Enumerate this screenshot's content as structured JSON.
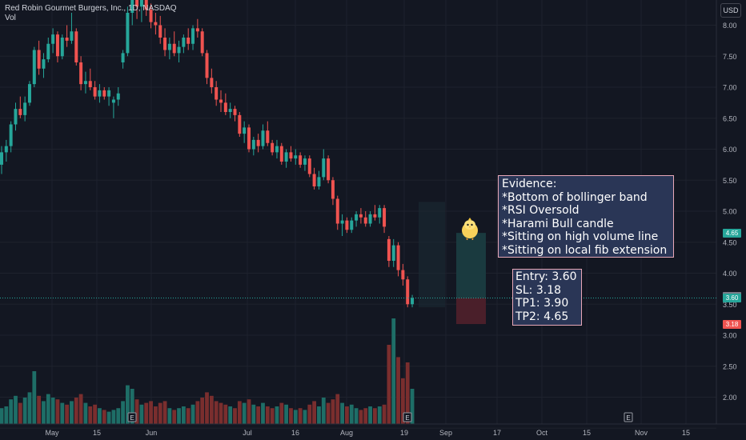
{
  "header": {
    "symbol_line": "Red Robin Gourmet Burgers, Inc., 1D, NASDAQ",
    "volume_label": "Vol"
  },
  "currency_button": "USD",
  "colors": {
    "background": "#131722",
    "up": "#26a69a",
    "down": "#ef5350",
    "vol_up": "#1e6e67",
    "vol_down": "#7a2e2e",
    "target_zone": "#1a3a3f",
    "stop_zone": "#4a1f2a",
    "note_fill": "#2a3656",
    "note_border": "#e8a8b8"
  },
  "notes": {
    "evidence": [
      "Evidence:",
      "*Bottom of bollinger band",
      "*RSI Oversold",
      "*Harami Bull candle",
      "*Sitting on high volume line",
      "*Sitting on local fib extension"
    ],
    "trade": [
      "Entry: 3.60",
      "SL: 3.18",
      "TP1: 3.90",
      "TP2: 4.65"
    ]
  },
  "price_tags": [
    {
      "label": "4.65",
      "value": 4.65,
      "color": "#26a69a"
    },
    {
      "label": "3.60",
      "value": 3.62,
      "color": "#787b86"
    },
    {
      "label": "3.60",
      "value": 3.6,
      "color": "#26a69a"
    },
    {
      "label": "3.18",
      "value": 3.18,
      "color": "#ef5350"
    }
  ],
  "trade_levels": {
    "entry": 3.6,
    "stop": 3.18,
    "tp1": 3.9,
    "tp2": 4.65
  },
  "chart_data": {
    "type": "candlestick",
    "y_ticks": [
      1.5,
      2.0,
      2.5,
      3.0,
      3.5,
      4.0,
      4.5,
      5.0,
      5.5,
      6.0,
      6.5,
      7.0,
      7.5,
      8.0
    ],
    "y_tick_labels": [
      "",
      "2.00",
      "2.50",
      "3.00",
      "3.50",
      "4.00",
      "4.50",
      "5.00",
      "5.50",
      "6.00",
      "6.50",
      "7.00",
      "7.50",
      "8.00"
    ],
    "ylim": [
      1.75,
      8.45
    ],
    "x_tick_labels": [
      "May",
      "15",
      "Jun",
      "Jul",
      "16",
      "Aug",
      "19",
      "Sep",
      "17",
      "Oct",
      "15",
      "Nov",
      "15"
    ],
    "x_tick_days": [
      0,
      14,
      31,
      61,
      76,
      92,
      110,
      123,
      139,
      153,
      167,
      184,
      198
    ],
    "event_markers": [
      "E",
      "E",
      "E"
    ],
    "event_days": [
      25,
      111,
      180
    ],
    "bars": [
      {
        "o": 5.75,
        "h": 6.05,
        "l": 5.6,
        "c": 5.95,
        "v": 0.09
      },
      {
        "o": 5.95,
        "h": 6.15,
        "l": 5.8,
        "c": 6.05,
        "v": 0.1
      },
      {
        "o": 6.05,
        "h": 6.45,
        "l": 5.95,
        "c": 6.4,
        "v": 0.14
      },
      {
        "o": 6.4,
        "h": 6.75,
        "l": 6.3,
        "c": 6.65,
        "v": 0.16
      },
      {
        "o": 6.65,
        "h": 6.85,
        "l": 6.5,
        "c": 6.55,
        "v": 0.12
      },
      {
        "o": 6.55,
        "h": 6.85,
        "l": 6.45,
        "c": 6.75,
        "v": 0.15
      },
      {
        "o": 6.75,
        "h": 7.1,
        "l": 6.7,
        "c": 7.05,
        "v": 0.18
      },
      {
        "o": 7.05,
        "h": 7.65,
        "l": 7.0,
        "c": 7.6,
        "v": 0.3
      },
      {
        "o": 7.6,
        "h": 7.75,
        "l": 7.2,
        "c": 7.3,
        "v": 0.16
      },
      {
        "o": 7.3,
        "h": 7.55,
        "l": 7.15,
        "c": 7.45,
        "v": 0.13
      },
      {
        "o": 7.45,
        "h": 7.8,
        "l": 7.4,
        "c": 7.7,
        "v": 0.17
      },
      {
        "o": 7.7,
        "h": 7.95,
        "l": 7.55,
        "c": 7.85,
        "v": 0.15
      },
      {
        "o": 7.85,
        "h": 7.9,
        "l": 7.4,
        "c": 7.5,
        "v": 0.14
      },
      {
        "o": 7.5,
        "h": 7.85,
        "l": 7.45,
        "c": 7.8,
        "v": 0.12
      },
      {
        "o": 7.8,
        "h": 8.0,
        "l": 7.65,
        "c": 7.75,
        "v": 0.11
      },
      {
        "o": 7.75,
        "h": 8.2,
        "l": 7.7,
        "c": 7.9,
        "v": 0.13
      },
      {
        "o": 7.9,
        "h": 7.95,
        "l": 7.35,
        "c": 7.4,
        "v": 0.15
      },
      {
        "o": 7.4,
        "h": 7.5,
        "l": 6.95,
        "c": 7.05,
        "v": 0.17
      },
      {
        "o": 7.05,
        "h": 7.25,
        "l": 6.9,
        "c": 7.1,
        "v": 0.12
      },
      {
        "o": 7.1,
        "h": 7.3,
        "l": 6.95,
        "c": 7.0,
        "v": 0.1
      },
      {
        "o": 7.0,
        "h": 7.1,
        "l": 6.8,
        "c": 6.85,
        "v": 0.11
      },
      {
        "o": 6.85,
        "h": 7.05,
        "l": 6.75,
        "c": 6.95,
        "v": 0.09
      },
      {
        "o": 6.95,
        "h": 7.0,
        "l": 6.8,
        "c": 6.85,
        "v": 0.08
      },
      {
        "o": 6.85,
        "h": 7.0,
        "l": 6.7,
        "c": 6.95,
        "v": 0.07
      },
      {
        "o": 6.75,
        "h": 6.85,
        "l": 6.5,
        "c": 6.8,
        "v": 0.08
      },
      {
        "o": 6.8,
        "h": 7.0,
        "l": 6.7,
        "c": 6.9,
        "v": 0.09
      },
      {
        "o": 7.4,
        "h": 7.6,
        "l": 7.3,
        "c": 7.55,
        "v": 0.13
      },
      {
        "o": 7.55,
        "h": 8.3,
        "l": 7.5,
        "c": 8.2,
        "v": 0.22
      },
      {
        "o": 8.2,
        "h": 8.6,
        "l": 8.0,
        "c": 8.45,
        "v": 0.2
      },
      {
        "o": 8.45,
        "h": 8.6,
        "l": 8.1,
        "c": 8.3,
        "v": 0.14
      },
      {
        "o": 8.3,
        "h": 8.55,
        "l": 8.05,
        "c": 8.5,
        "v": 0.11
      },
      {
        "o": 8.5,
        "h": 8.6,
        "l": 8.15,
        "c": 8.25,
        "v": 0.12
      },
      {
        "o": 8.25,
        "h": 8.35,
        "l": 7.95,
        "c": 8.05,
        "v": 0.13
      },
      {
        "o": 8.05,
        "h": 8.2,
        "l": 7.85,
        "c": 8.0,
        "v": 0.1
      },
      {
        "o": 8.0,
        "h": 8.15,
        "l": 7.7,
        "c": 7.8,
        "v": 0.12
      },
      {
        "o": 7.8,
        "h": 7.95,
        "l": 7.5,
        "c": 7.6,
        "v": 0.13
      },
      {
        "o": 7.6,
        "h": 7.8,
        "l": 7.45,
        "c": 7.7,
        "v": 0.09
      },
      {
        "o": 7.7,
        "h": 7.9,
        "l": 7.5,
        "c": 7.55,
        "v": 0.08
      },
      {
        "o": 7.55,
        "h": 7.75,
        "l": 7.4,
        "c": 7.65,
        "v": 0.09
      },
      {
        "o": 7.65,
        "h": 7.85,
        "l": 7.55,
        "c": 7.8,
        "v": 0.1
      },
      {
        "o": 7.8,
        "h": 7.95,
        "l": 7.6,
        "c": 7.7,
        "v": 0.09
      },
      {
        "o": 7.7,
        "h": 8.0,
        "l": 7.6,
        "c": 7.95,
        "v": 0.11
      },
      {
        "o": 7.95,
        "h": 8.1,
        "l": 7.8,
        "c": 7.9,
        "v": 0.13
      },
      {
        "o": 7.9,
        "h": 7.95,
        "l": 7.5,
        "c": 7.55,
        "v": 0.15
      },
      {
        "o": 7.55,
        "h": 7.6,
        "l": 7.05,
        "c": 7.15,
        "v": 0.18
      },
      {
        "o": 7.15,
        "h": 7.3,
        "l": 6.9,
        "c": 7.0,
        "v": 0.16
      },
      {
        "o": 7.0,
        "h": 7.1,
        "l": 6.7,
        "c": 6.8,
        "v": 0.13
      },
      {
        "o": 6.8,
        "h": 6.95,
        "l": 6.6,
        "c": 6.75,
        "v": 0.12
      },
      {
        "o": 6.75,
        "h": 6.9,
        "l": 6.55,
        "c": 6.6,
        "v": 0.11
      },
      {
        "o": 6.6,
        "h": 6.75,
        "l": 6.5,
        "c": 6.65,
        "v": 0.1
      },
      {
        "o": 6.65,
        "h": 6.7,
        "l": 6.45,
        "c": 6.55,
        "v": 0.09
      },
      {
        "o": 6.55,
        "h": 6.6,
        "l": 6.2,
        "c": 6.25,
        "v": 0.13
      },
      {
        "o": 6.25,
        "h": 6.45,
        "l": 6.1,
        "c": 6.35,
        "v": 0.12
      },
      {
        "o": 6.35,
        "h": 6.4,
        "l": 5.95,
        "c": 6.0,
        "v": 0.14
      },
      {
        "o": 6.0,
        "h": 6.2,
        "l": 5.9,
        "c": 6.15,
        "v": 0.11
      },
      {
        "o": 6.15,
        "h": 6.25,
        "l": 5.95,
        "c": 6.05,
        "v": 0.1
      },
      {
        "o": 6.05,
        "h": 6.4,
        "l": 6.0,
        "c": 6.3,
        "v": 0.12
      },
      {
        "o": 6.3,
        "h": 6.45,
        "l": 6.05,
        "c": 6.1,
        "v": 0.1
      },
      {
        "o": 6.1,
        "h": 6.15,
        "l": 5.9,
        "c": 5.95,
        "v": 0.09
      },
      {
        "o": 5.95,
        "h": 6.15,
        "l": 5.85,
        "c": 6.05,
        "v": 0.1
      },
      {
        "o": 6.05,
        "h": 6.1,
        "l": 5.75,
        "c": 5.8,
        "v": 0.12
      },
      {
        "o": 5.8,
        "h": 6.0,
        "l": 5.7,
        "c": 5.95,
        "v": 0.11
      },
      {
        "o": 5.95,
        "h": 6.05,
        "l": 5.8,
        "c": 5.85,
        "v": 0.09
      },
      {
        "o": 5.85,
        "h": 6.0,
        "l": 5.75,
        "c": 5.9,
        "v": 0.08
      },
      {
        "o": 5.9,
        "h": 5.95,
        "l": 5.7,
        "c": 5.75,
        "v": 0.09
      },
      {
        "o": 5.75,
        "h": 5.9,
        "l": 5.65,
        "c": 5.85,
        "v": 0.08
      },
      {
        "o": 5.85,
        "h": 5.9,
        "l": 5.55,
        "c": 5.6,
        "v": 0.11
      },
      {
        "o": 5.6,
        "h": 5.7,
        "l": 5.35,
        "c": 5.4,
        "v": 0.13
      },
      {
        "o": 5.4,
        "h": 5.65,
        "l": 5.35,
        "c": 5.55,
        "v": 0.1
      },
      {
        "o": 5.55,
        "h": 6.0,
        "l": 5.5,
        "c": 5.85,
        "v": 0.15
      },
      {
        "o": 5.85,
        "h": 5.9,
        "l": 5.45,
        "c": 5.5,
        "v": 0.12
      },
      {
        "o": 5.5,
        "h": 5.55,
        "l": 5.1,
        "c": 5.2,
        "v": 0.14
      },
      {
        "o": 5.2,
        "h": 5.25,
        "l": 4.7,
        "c": 4.8,
        "v": 0.17
      },
      {
        "o": 4.8,
        "h": 4.95,
        "l": 4.6,
        "c": 4.85,
        "v": 0.12
      },
      {
        "o": 4.85,
        "h": 4.9,
        "l": 4.65,
        "c": 4.7,
        "v": 0.1
      },
      {
        "o": 4.7,
        "h": 4.9,
        "l": 4.65,
        "c": 4.85,
        "v": 0.11
      },
      {
        "o": 4.85,
        "h": 5.0,
        "l": 4.75,
        "c": 4.95,
        "v": 0.09
      },
      {
        "o": 4.95,
        "h": 5.05,
        "l": 4.8,
        "c": 4.9,
        "v": 0.08
      },
      {
        "o": 4.9,
        "h": 5.0,
        "l": 4.75,
        "c": 4.8,
        "v": 0.09
      },
      {
        "o": 4.8,
        "h": 5.0,
        "l": 4.75,
        "c": 4.95,
        "v": 0.1
      },
      {
        "o": 4.95,
        "h": 5.1,
        "l": 4.85,
        "c": 4.9,
        "v": 0.09
      },
      {
        "o": 4.9,
        "h": 5.1,
        "l": 4.8,
        "c": 5.05,
        "v": 0.1
      },
      {
        "o": 5.05,
        "h": 5.1,
        "l": 4.65,
        "c": 4.75,
        "v": 0.11
      },
      {
        "o": 4.55,
        "h": 4.6,
        "l": 4.1,
        "c": 4.2,
        "v": 0.45
      },
      {
        "o": 4.2,
        "h": 4.55,
        "l": 4.1,
        "c": 4.45,
        "v": 0.6
      },
      {
        "o": 4.45,
        "h": 4.5,
        "l": 3.95,
        "c": 4.05,
        "v": 0.38
      },
      {
        "o": 4.05,
        "h": 4.15,
        "l": 3.8,
        "c": 3.9,
        "v": 0.26
      },
      {
        "o": 3.9,
        "h": 3.95,
        "l": 3.45,
        "c": 3.5,
        "v": 0.35
      },
      {
        "o": 3.5,
        "h": 3.65,
        "l": 3.45,
        "c": 3.6,
        "v": 0.2
      }
    ]
  }
}
